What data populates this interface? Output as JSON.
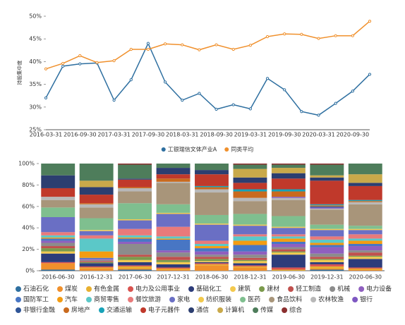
{
  "chart_data": [
    {
      "type": "line",
      "ylabel": "持股集中度",
      "categories": [
        "2016-03-31",
        null,
        "2016-09-30",
        null,
        "2017-03-31",
        null,
        "2017-09-30",
        null,
        "2018-03-31",
        null,
        "2018-09-30",
        null,
        "2019-03-31",
        null,
        "2019-09-30",
        null,
        "2020-03-31",
        null,
        "2020-09-30",
        null
      ],
      "series": [
        {
          "name": "工银瑞信文体产业A",
          "color": "#2e6fa0",
          "values": [
            32,
            39,
            39.5,
            39.7,
            31.5,
            36,
            44,
            35.5,
            31.5,
            33,
            29.5,
            30.5,
            29.6,
            36.3,
            33.8,
            29,
            28.2,
            30.8,
            33.5,
            37.2
          ]
        },
        {
          "name": "同类平均",
          "color": "#f0902c",
          "values": [
            38.4,
            39.6,
            41.3,
            39.8,
            40.2,
            42.7,
            42.7,
            43.9,
            43.7,
            42.6,
            43.7,
            42.7,
            43.6,
            45.5,
            46.1,
            46.0,
            45.1,
            45.7,
            45.7,
            48.9
          ]
        }
      ],
      "ylim": [
        25,
        50
      ],
      "yticks": [
        {
          "value": 25,
          "label": "25%"
        },
        {
          "value": 30,
          "label": "30%"
        },
        {
          "value": 35,
          "label": "35%"
        },
        {
          "value": 40,
          "label": "40%"
        },
        {
          "value": 45,
          "label": "45%"
        },
        {
          "value": 50,
          "label": "50%"
        }
      ]
    },
    {
      "type": "bar",
      "stacked": true,
      "categories": [
        "2016-06-30",
        "2016-12-31",
        "2017-06-30",
        "2017-12-31",
        "2018-06-30",
        "2018-12-31",
        "2019-06-30",
        "2019-12-31",
        "2020-06-30"
      ],
      "series": [
        {
          "name": "石油石化",
          "color": "#2e6fa0",
          "values": [
            1,
            0,
            1,
            0,
            0,
            0,
            0,
            1,
            0
          ]
        },
        {
          "name": "煤炭",
          "color": "#f0902c",
          "values": [
            6,
            2,
            1,
            1,
            5,
            3,
            0,
            1,
            1
          ]
        },
        {
          "name": "有色金属",
          "color": "#e8b030",
          "values": [
            0,
            1,
            2,
            1,
            1,
            1,
            1,
            2,
            1
          ]
        },
        {
          "name": "电力及公用事业",
          "color": "#d9534f",
          "values": [
            1,
            1,
            1,
            1,
            1,
            1,
            2,
            2,
            1
          ]
        },
        {
          "name": "基础化工",
          "color": "#2d3c7a",
          "values": [
            8,
            3,
            3,
            3,
            1,
            2,
            12,
            2,
            8
          ]
        },
        {
          "name": "建筑",
          "color": "#f3c94e",
          "values": [
            2,
            0,
            2,
            2,
            1,
            2,
            2,
            2,
            2
          ]
        },
        {
          "name": "建材",
          "color": "#7b9a4c",
          "values": [
            3,
            1,
            3,
            2,
            2,
            1,
            1,
            1,
            1
          ]
        },
        {
          "name": "轻工制造",
          "color": "#c0504d",
          "values": [
            2,
            1,
            2,
            3,
            2,
            2,
            2,
            2,
            3
          ]
        },
        {
          "name": "机械",
          "color": "#8c8c8c",
          "values": [
            3,
            1,
            10,
            4,
            2,
            3,
            2,
            3,
            2
          ]
        },
        {
          "name": "电力设备",
          "color": "#8f5fbf",
          "values": [
            2,
            1,
            2,
            2,
            3,
            3,
            3,
            6,
            4
          ]
        },
        {
          "name": "国防军工",
          "color": "#4876c4",
          "values": [
            2,
            1,
            3,
            10,
            3,
            6,
            2,
            2,
            2
          ]
        },
        {
          "name": "汽车",
          "color": "#f39c12",
          "values": [
            1,
            6,
            1,
            1,
            2,
            4,
            3,
            2,
            3
          ]
        },
        {
          "name": "商贸零售",
          "color": "#5bc8c8",
          "values": [
            2,
            12,
            2,
            2,
            2,
            4,
            2,
            3,
            2
          ]
        },
        {
          "name": "餐饮旅游",
          "color": "#e87a7a",
          "values": [
            3,
            3,
            6,
            9,
            3,
            2,
            2,
            3,
            4
          ]
        },
        {
          "name": "家电",
          "color": "#6a6fc4",
          "values": [
            14,
            4,
            8,
            12,
            15,
            8,
            6,
            6,
            4
          ]
        },
        {
          "name": "纺织服装",
          "color": "#f2c94c",
          "values": [
            0,
            1,
            1,
            1,
            1,
            1,
            1,
            1,
            1
          ]
        },
        {
          "name": "医药",
          "color": "#7fbf8f",
          "values": [
            9,
            11,
            15,
            8,
            8,
            10,
            10,
            4,
            3
          ]
        },
        {
          "name": "食品饮料",
          "color": "#a8957a",
          "values": [
            7,
            10,
            11,
            20,
            21,
            12,
            15,
            14,
            20
          ]
        },
        {
          "name": "农林牧渔",
          "color": "#b8b8b8",
          "values": [
            3,
            3,
            3,
            1,
            3,
            3,
            2,
            1,
            2
          ]
        },
        {
          "name": "银行",
          "color": "#7e57c2",
          "values": [
            0,
            0,
            0,
            0,
            0,
            0,
            1,
            1,
            0
          ]
        },
        {
          "name": "非银行金融",
          "color": "#2f5597",
          "values": [
            0,
            0,
            0,
            0,
            0,
            0,
            0,
            1,
            0
          ]
        },
        {
          "name": "房地产",
          "color": "#c96a1e",
          "values": [
            0,
            1,
            1,
            3,
            2,
            6,
            5,
            1,
            1
          ]
        },
        {
          "name": "交通运输",
          "color": "#17a2b8",
          "values": [
            0,
            0,
            0,
            0,
            1,
            2,
            2,
            1,
            1
          ]
        },
        {
          "name": "电子元器件",
          "color": "#c0392b",
          "values": [
            8,
            8,
            7,
            4,
            11,
            6,
            10,
            22,
            13
          ]
        },
        {
          "name": "通信",
          "color": "#2c3e70",
          "values": [
            12,
            7,
            1,
            6,
            4,
            5,
            5,
            3,
            3
          ]
        },
        {
          "name": "计算机",
          "color": "#c9a94a",
          "values": [
            0,
            6,
            0,
            0,
            0,
            8,
            5,
            2,
            8
          ]
        },
        {
          "name": "传媒",
          "color": "#4e7d5b",
          "values": [
            11,
            16,
            13,
            4,
            6,
            4,
            3,
            10,
            10
          ]
        },
        {
          "name": "综合",
          "color": "#8b2f2f",
          "values": [
            0,
            0,
            1,
            0,
            0,
            1,
            1,
            1,
            0
          ]
        }
      ],
      "ylim": [
        0,
        100
      ],
      "yticks": [
        {
          "value": 0,
          "label": "0%"
        },
        {
          "value": 20,
          "label": "20%"
        },
        {
          "value": 40,
          "label": "40%"
        },
        {
          "value": 60,
          "label": "60%"
        },
        {
          "value": 80,
          "label": "80%"
        },
        {
          "value": 100,
          "label": "100%"
        }
      ]
    }
  ]
}
